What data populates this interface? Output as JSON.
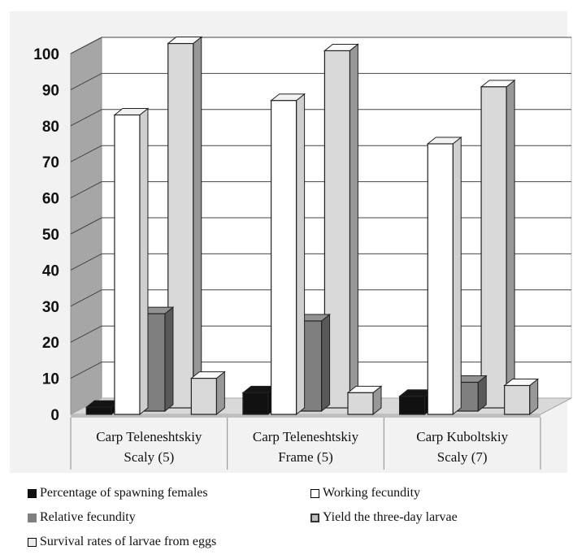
{
  "chart_data": {
    "type": "bar",
    "categories": [
      [
        "Carp Teleneshtskiy",
        "Scaly (5)"
      ],
      [
        "Carp Teleneshtskiy",
        "Frame (5)"
      ],
      [
        "Carp Kuboltskiy",
        "Scaly (7)"
      ]
    ],
    "series": [
      {
        "name": "Percentage of spawning females",
        "values": [
          2,
          6,
          5
        ],
        "color": "#111111"
      },
      {
        "name": "Working fecundity",
        "values": [
          83,
          87,
          75
        ],
        "color": "#ffffff"
      },
      {
        "name": "Relative fecundity",
        "values": [
          27,
          25,
          8
        ],
        "color": "#7f7f7f"
      },
      {
        "name": "Survival rates of larvae from eggs",
        "values": [
          101,
          99,
          89
        ],
        "color": "#d9d9d9"
      },
      {
        "name": "Yield the three-day larvae",
        "values": [
          10,
          6,
          8
        ],
        "color": "#d9d9d9"
      }
    ],
    "yticks": [
      0,
      10,
      20,
      30,
      40,
      50,
      60,
      70,
      80,
      90,
      100
    ],
    "ylim": [
      0,
      100
    ],
    "grid": true,
    "legend_position": "bottom"
  }
}
